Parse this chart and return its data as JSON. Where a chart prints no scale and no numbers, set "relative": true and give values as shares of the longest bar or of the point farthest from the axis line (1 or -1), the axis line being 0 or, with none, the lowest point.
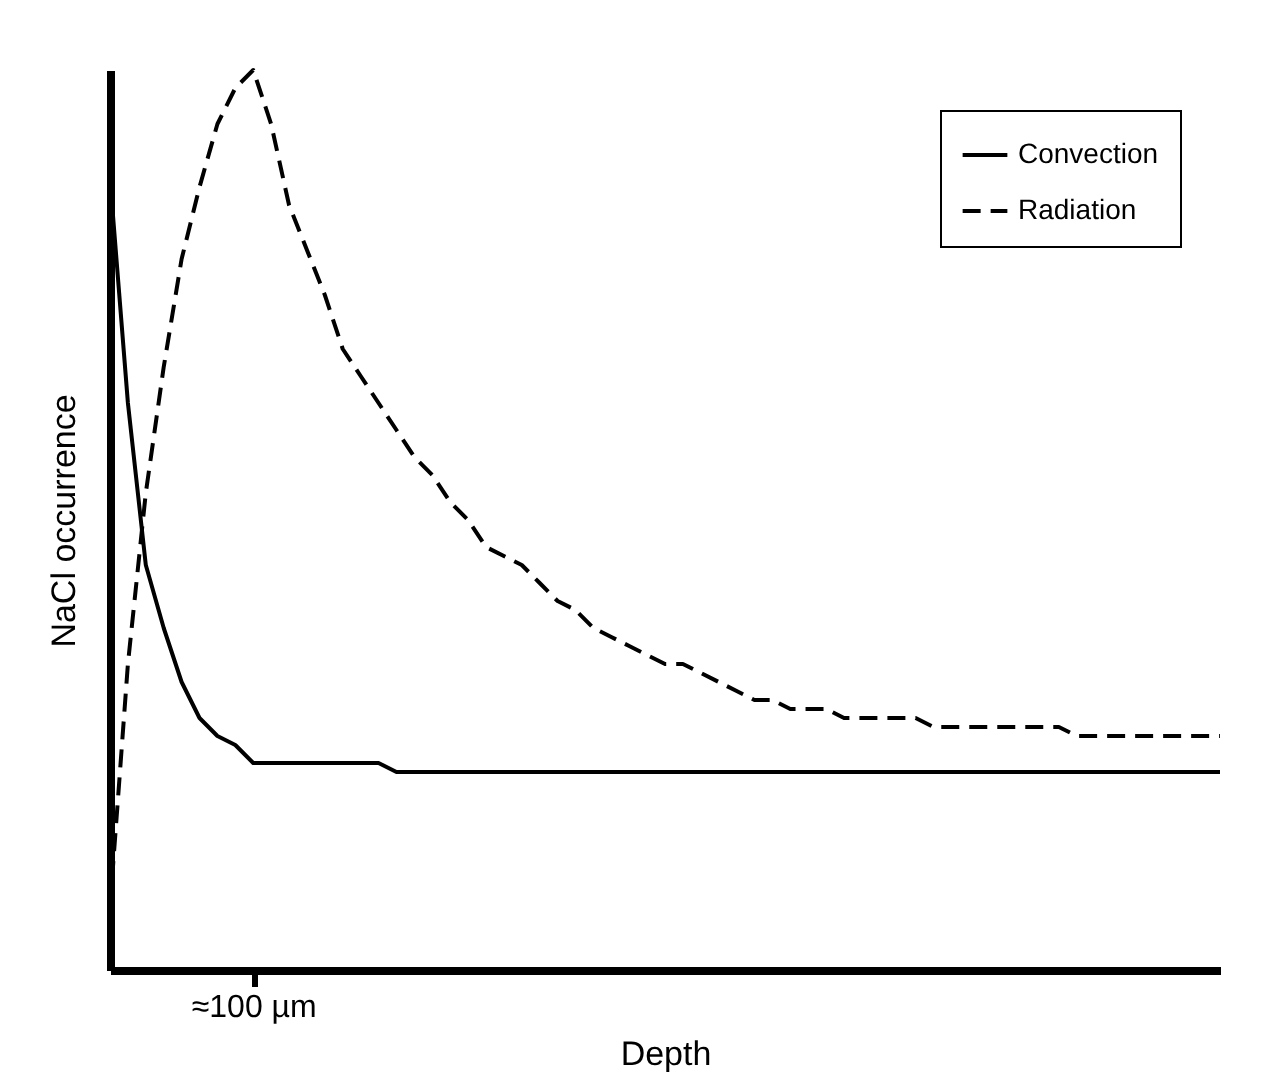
{
  "chart_data": {
    "type": "line",
    "xlabel": "Depth",
    "ylabel": "NaCl occurrence",
    "relative": true,
    "legend": "top right",
    "annotations": [
      "≈100 µm"
    ],
    "categories": [
      null,
      null,
      null,
      null,
      null,
      null,
      null,
      null,
      null,
      null,
      null,
      null,
      null,
      null,
      null,
      null,
      null,
      null,
      null,
      null,
      null,
      null,
      null,
      null,
      null,
      null,
      null,
      null,
      null,
      null,
      null,
      null,
      null,
      null,
      null,
      null,
      null,
      null,
      null,
      null,
      null,
      null,
      null,
      null,
      null,
      null,
      null,
      null,
      null,
      null,
      null,
      null,
      null,
      null,
      null,
      null,
      null,
      null,
      null,
      null,
      null,
      null,
      null
    ],
    "series": [
      {
        "name": "Convection",
        "color": "#000000",
        "line_style": "solid",
        "values": [
          0.88,
          0.63,
          0.45,
          0.38,
          0.32,
          0.28,
          0.26,
          0.25,
          0.23,
          0.23,
          0.23,
          0.23,
          0.23,
          0.23,
          0.23,
          0.23,
          0.22,
          0.22,
          0.22,
          0.22,
          0.22,
          0.22,
          0.22,
          0.22,
          0.22,
          0.22,
          0.22,
          0.22,
          0.22,
          0.22,
          0.22,
          0.22,
          0.22,
          0.22,
          0.22,
          0.22,
          0.22,
          0.22,
          0.22,
          0.22,
          0.22,
          0.22,
          0.22,
          0.22,
          0.22,
          0.22,
          0.22,
          0.22,
          0.22,
          0.22,
          0.22,
          0.22,
          0.22,
          0.22,
          0.22,
          0.22,
          0.22,
          0.22,
          0.22,
          0.22,
          0.22,
          0.22,
          0.22
        ]
      },
      {
        "name": "Radiation",
        "color": "#000000",
        "line_style": "dashed",
        "values": [
          0.07,
          0.34,
          0.53,
          0.67,
          0.79,
          0.87,
          0.94,
          0.98,
          1,
          0.94,
          0.85,
          0.8,
          0.75,
          0.69,
          0.66,
          0.63,
          0.6,
          0.57,
          0.55,
          0.52,
          0.5,
          0.47,
          0.46,
          0.45,
          0.43,
          0.41,
          0.4,
          0.38,
          0.37,
          0.36,
          0.35,
          0.34,
          0.34,
          0.33,
          0.32,
          0.31,
          0.3,
          0.3,
          0.29,
          0.29,
          0.29,
          0.28,
          0.28,
          0.28,
          0.28,
          0.28,
          0.27,
          0.27,
          0.27,
          0.27,
          0.27,
          0.27,
          0.27,
          0.27,
          0.26,
          0.26,
          0.26,
          0.26,
          0.26,
          0.26,
          0.26,
          0.26,
          0.26
        ]
      }
    ]
  }
}
